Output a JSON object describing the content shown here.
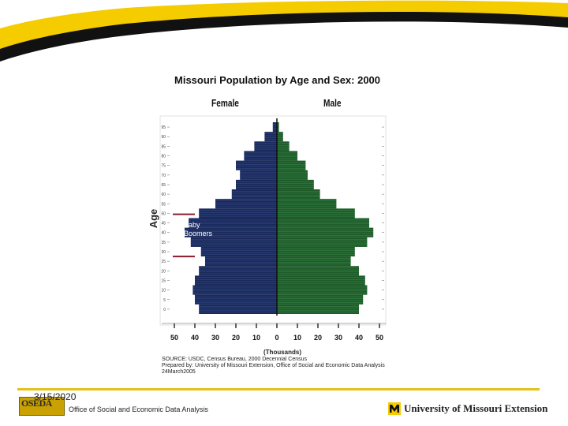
{
  "slide": {
    "date": "3/15/2020",
    "office": "Office of Social and Economic Data Analysis",
    "logo_left": "OSEDA",
    "logo_right": "University of Missouri Extension",
    "colors": {
      "accent_yellow": "#f5cc00",
      "swoosh_black": "#111111"
    }
  },
  "chart_data": {
    "type": "bar",
    "orientation": "horizontal",
    "title": "Missouri Population by Age and Sex: 2000",
    "ylabel": "Age",
    "xlabel": "(Thousands)",
    "left_label": "Female",
    "right_label": "Male",
    "xlim": [
      -50,
      50
    ],
    "x_ticks": [
      "50",
      "40",
      "30",
      "20",
      "10",
      "0",
      "10",
      "20",
      "30",
      "40",
      "50"
    ],
    "y_ticks": [
      "0",
      "5",
      "10",
      "15",
      "20",
      "25",
      "30",
      "35",
      "40",
      "45",
      "50",
      "55",
      "60",
      "65",
      "70",
      "75",
      "80",
      "85",
      "90",
      "95"
    ],
    "age_groups": [
      "0",
      "5",
      "10",
      "15",
      "20",
      "25",
      "30",
      "35",
      "40",
      "45",
      "50",
      "55",
      "60",
      "65",
      "70",
      "75",
      "80",
      "85",
      "90",
      "95"
    ],
    "series": [
      {
        "name": "Female",
        "color": "#1a2a5c",
        "values": [
          38,
          40,
          41,
          40,
          38,
          35,
          37,
          42,
          45,
          43,
          38,
          30,
          22,
          20,
          18,
          20,
          16,
          11,
          6,
          2
        ]
      },
      {
        "name": "Male",
        "color": "#1e5c2a",
        "values": [
          40,
          42,
          44,
          43,
          40,
          36,
          38,
          44,
          47,
          45,
          38,
          29,
          21,
          18,
          15,
          14,
          10,
          6,
          3,
          1
        ]
      }
    ],
    "annotation": {
      "line1": "Baby",
      "line2": "Boomers",
      "age_range": [
        30,
        52
      ],
      "marker_color": "#8b1a2b"
    },
    "source": [
      "SOURCE:  USDC, Census Bureau, 2000 Decennial Census",
      "Prepared by:  University of Missouri Extension, Office of Social and Economic Data Analysis",
      "24March2005"
    ]
  }
}
